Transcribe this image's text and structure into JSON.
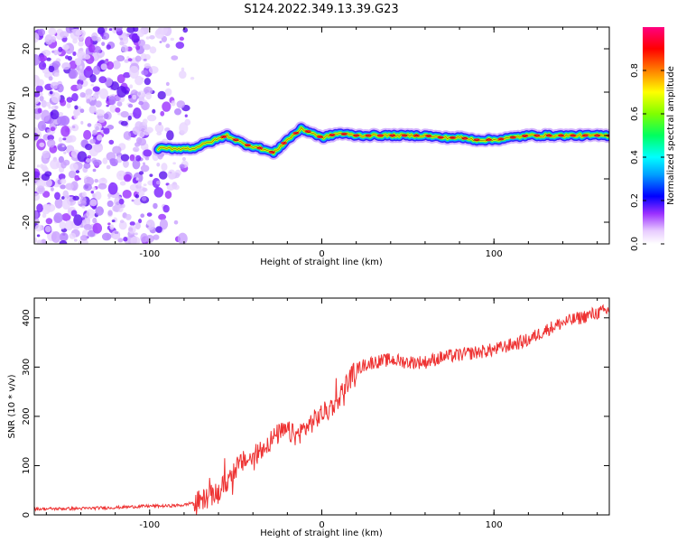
{
  "title": "S124.2022.349.13.39.G23",
  "chart_data": [
    {
      "type": "heatmap",
      "xlabel": "Height of straight line (km)",
      "ylabel": "Frequency (Hz)",
      "xlim": [
        -167,
        167
      ],
      "ylim": [
        -25,
        25
      ],
      "x_ticks": [
        -100,
        0,
        100
      ],
      "y_ticks": [
        -20,
        -10,
        0,
        10,
        20
      ],
      "colorbar": {
        "label": "Normalized spectral amplitude",
        "range": [
          0,
          1
        ],
        "ticks": [
          0.0,
          0.2,
          0.4,
          0.6,
          0.8
        ]
      },
      "ridge_line": {
        "description_of_trace": "peak frequency vs height",
        "x": [
          -95,
          -85,
          -75,
          -65,
          -55,
          -45,
          -35,
          -28,
          -20,
          -12,
          -5,
          0,
          5,
          10,
          20,
          40,
          60,
          70,
          80,
          90,
          100,
          120,
          140,
          160,
          167
        ],
        "y": [
          -3,
          -3,
          -3,
          -1.5,
          0,
          -2,
          -3,
          -4,
          -1,
          1.5,
          0.5,
          -0.5,
          0,
          0.5,
          0,
          0,
          0,
          -0.5,
          -0.5,
          -1,
          -1,
          0,
          0,
          0,
          0
        ]
      },
      "noise_region_x": [
        -167,
        -90
      ]
    },
    {
      "type": "line",
      "xlabel": "Height of straight line (km)",
      "ylabel": "SNR (10 * v/v)",
      "xlim": [
        -167,
        167
      ],
      "ylim": [
        0,
        440
      ],
      "x_ticks": [
        -100,
        0,
        100
      ],
      "y_ticks": [
        0,
        100,
        200,
        300,
        400
      ],
      "series": [
        {
          "color": "#ee3333",
          "x": [
            -167,
            -140,
            -120,
            -100,
            -90,
            -80,
            -70,
            -60,
            -55,
            -50,
            -45,
            -40,
            -35,
            -30,
            -25,
            -20,
            -15,
            -10,
            -5,
            0,
            5,
            10,
            15,
            20,
            25,
            30,
            40,
            50,
            60,
            70,
            80,
            90,
            100,
            110,
            120,
            130,
            140,
            150,
            160,
            167
          ],
          "values": [
            12,
            13,
            15,
            18,
            18,
            20,
            30,
            45,
            70,
            95,
            110,
            115,
            135,
            150,
            165,
            170,
            160,
            175,
            190,
            205,
            215,
            240,
            270,
            295,
            305,
            310,
            315,
            310,
            310,
            320,
            325,
            330,
            335,
            345,
            355,
            375,
            390,
            400,
            410,
            415
          ]
        }
      ]
    }
  ]
}
